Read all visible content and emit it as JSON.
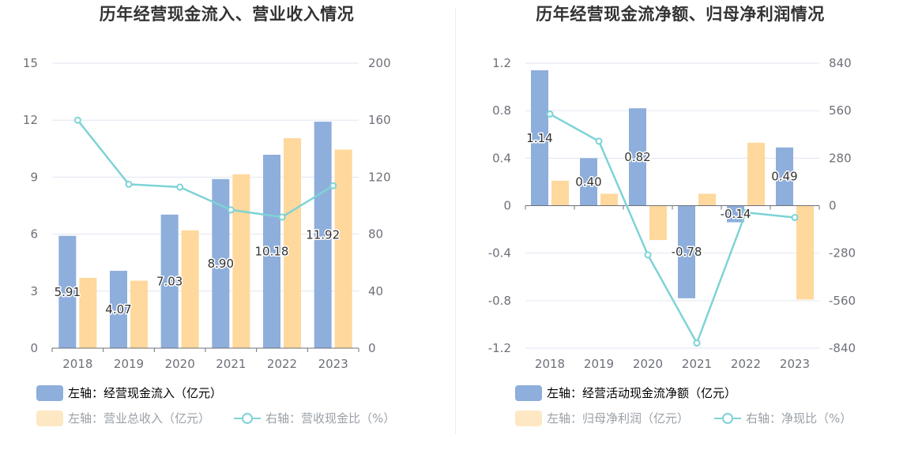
{
  "chart_data": [
    {
      "type": "bar",
      "title": "历年经营现金流入、营业收入情况",
      "categories": [
        "2018",
        "2019",
        "2020",
        "2021",
        "2022",
        "2023"
      ],
      "left_axis": {
        "ylim": [
          0,
          15
        ],
        "ticks": [
          "0",
          "3",
          "6",
          "9",
          "12",
          "15"
        ]
      },
      "right_axis": {
        "ylim": [
          0,
          200
        ],
        "ticks": [
          "0",
          "40",
          "80",
          "120",
          "160",
          "200"
        ]
      },
      "grid": true,
      "legend_placement": "bottom-left",
      "series": [
        {
          "name": "左轴：经营现金流入（亿元）",
          "type": "bar",
          "axis": "left",
          "color": "#8eaedb",
          "values": [
            5.91,
            4.07,
            7.03,
            8.9,
            10.18,
            11.92
          ],
          "labels": [
            "5.91",
            "4.07",
            "7.03",
            "8.90",
            "10.18",
            "11.92"
          ]
        },
        {
          "name": "左轴：营业总收入（亿元）",
          "type": "bar",
          "axis": "left",
          "color": "#fed89c",
          "values": [
            3.7,
            3.55,
            6.2,
            9.15,
            11.05,
            10.45
          ]
        },
        {
          "name": "右轴：营收现金比（%）",
          "type": "line",
          "axis": "right",
          "color": "#7ed3d6",
          "values": [
            160,
            115,
            113,
            97,
            92,
            114
          ]
        }
      ]
    },
    {
      "type": "bar",
      "title": "历年经营现金流净额、归母净利润情况",
      "categories": [
        "2018",
        "2019",
        "2020",
        "2021",
        "2022",
        "2023"
      ],
      "left_axis": {
        "ylim": [
          -1.2,
          1.2
        ],
        "ticks": [
          "-1.2",
          "-0.8",
          "-0.4",
          "0",
          "0.4",
          "0.8",
          "1.2"
        ]
      },
      "right_axis": {
        "ylim": [
          -840,
          840
        ],
        "ticks": [
          "-840",
          "-560",
          "-280",
          "0",
          "280",
          "560",
          "840"
        ]
      },
      "grid": true,
      "legend_placement": "bottom-left",
      "series": [
        {
          "name": "左轴：经营活动现金流净额（亿元）",
          "type": "bar",
          "axis": "left",
          "color": "#8eaedb",
          "values": [
            1.14,
            0.4,
            0.82,
            -0.78,
            -0.14,
            0.49
          ],
          "labels": [
            "1.14",
            "0.40",
            "0.82",
            "-0.78",
            "-0.14",
            "0.49"
          ]
        },
        {
          "name": "左轴：归母净利润（亿元）",
          "type": "bar",
          "axis": "left",
          "color": "#fed89c",
          "values": [
            0.21,
            0.1,
            -0.29,
            0.1,
            0.53,
            -0.79
          ]
        },
        {
          "name": "右轴：净现比（%）",
          "type": "line",
          "axis": "right",
          "color": "#7ed3d6",
          "values": [
            540,
            380,
            -290,
            -810,
            -40,
            -70
          ]
        }
      ]
    }
  ]
}
